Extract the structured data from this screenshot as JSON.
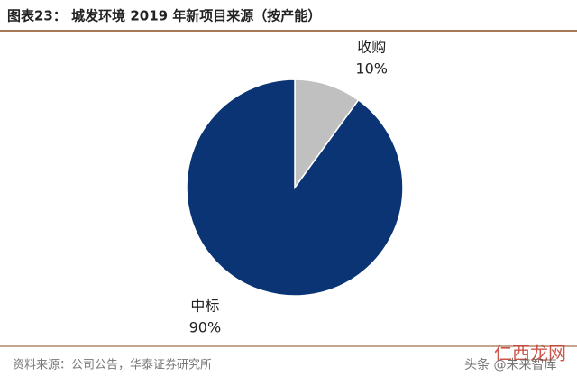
{
  "chart_data": {
    "type": "pie",
    "title": "图表23：  城发环境 2019 年新项目来源（按产能）",
    "categories": [
      "收购",
      "中标"
    ],
    "values": [
      10,
      90
    ],
    "value_labels": [
      "10%",
      "90%"
    ],
    "colors": [
      "#c0c0c0",
      "#0b3474"
    ],
    "source": "资料来源：公司公告，华泰证券研究所",
    "watermarks": [
      "仁西龙网",
      "头条 @未来智库"
    ]
  }
}
